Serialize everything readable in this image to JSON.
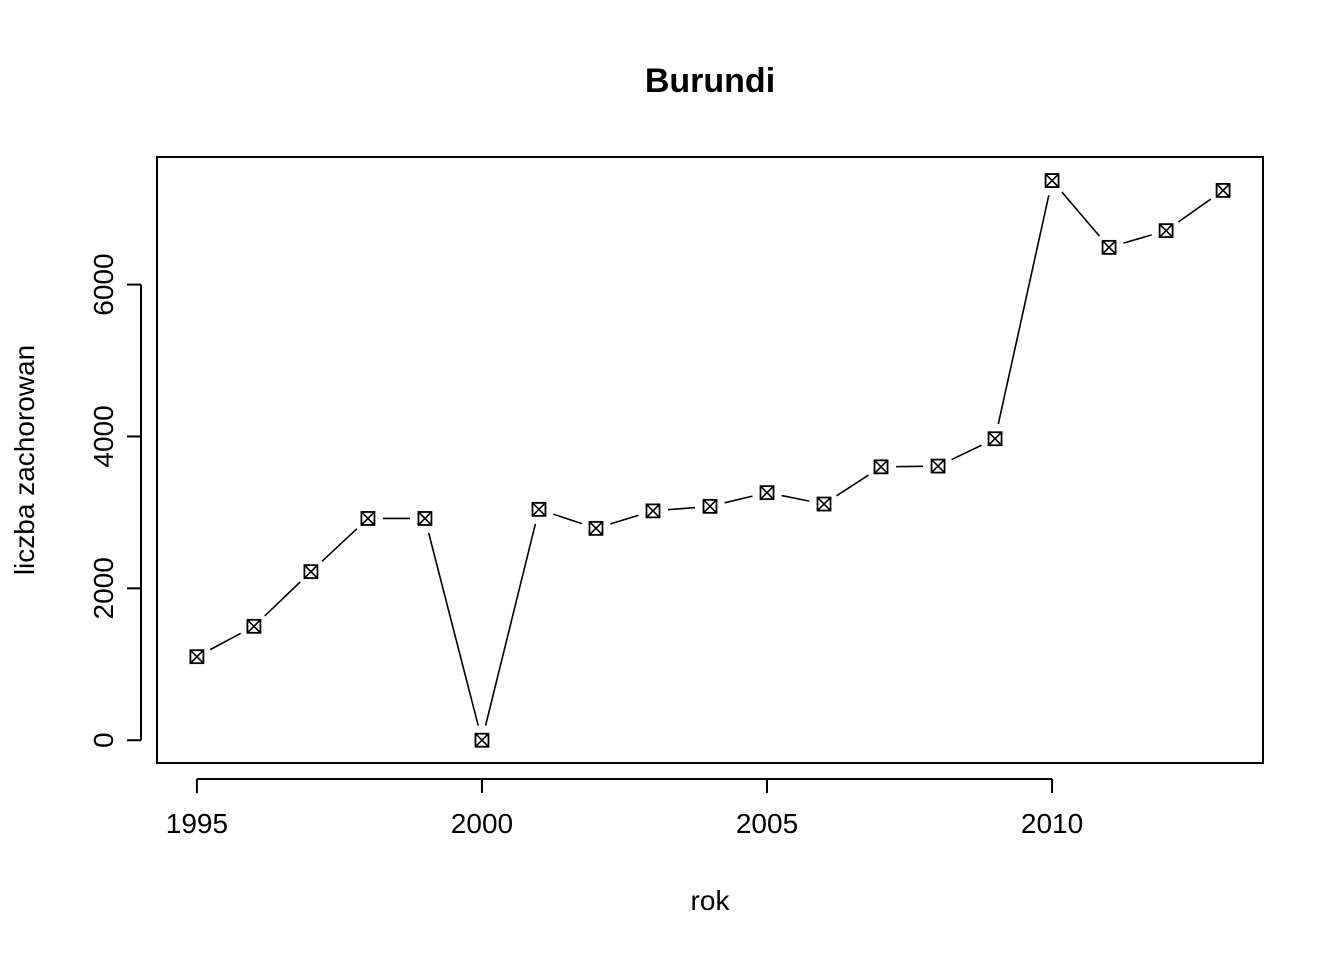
{
  "chart_data": {
    "type": "line",
    "title": "Burundi",
    "xlabel": "rok",
    "ylabel": "liczba zachorowan",
    "x": [
      1995,
      1996,
      1997,
      1998,
      1999,
      2000,
      2001,
      2002,
      2003,
      2004,
      2005,
      2006,
      2007,
      2008,
      2009,
      2010,
      2011,
      2012,
      2013
    ],
    "series": [
      {
        "values": [
          1100,
          1500,
          2220,
          2920,
          2920,
          0,
          3040,
          2790,
          3020,
          3080,
          3260,
          3110,
          3600,
          3610,
          3970,
          7370,
          6490,
          6710,
          7240
        ]
      }
    ],
    "xlim": [
      1994.3,
      2013.7
    ],
    "ylim": [
      -300,
      7680
    ],
    "xticks": [
      "1995",
      "2000",
      "2005",
      "2010"
    ],
    "yticks": [
      "0",
      "2000",
      "4000",
      "6000"
    ],
    "marker": "square-with-x",
    "grid": false,
    "legend": "none",
    "colors": {
      "line": "#000000",
      "background": "#ffffff"
    }
  }
}
